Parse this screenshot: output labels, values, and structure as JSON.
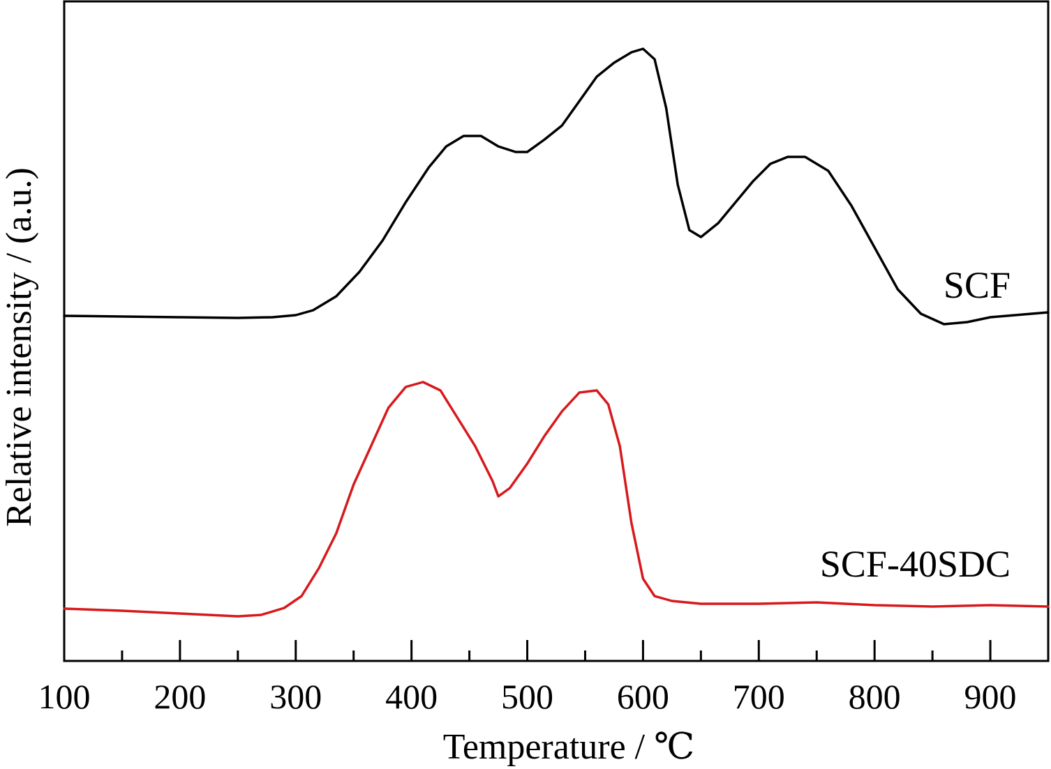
{
  "chart_data": {
    "type": "line",
    "xlabel": "Temperature / ℃",
    "ylabel": "Relative intensity / (a.u.)",
    "xlim": [
      100,
      950
    ],
    "x_ticks": [
      "100",
      "200",
      "300",
      "400",
      "500",
      "600",
      "700",
      "800",
      "900"
    ],
    "y_ticks": "none",
    "grid": false,
    "series": [
      {
        "name": "SCF",
        "color": "#000000",
        "x": [
          100,
          150,
          200,
          250,
          280,
          300,
          315,
          335,
          355,
          375,
          395,
          415,
          430,
          445,
          460,
          475,
          490,
          500,
          515,
          530,
          545,
          560,
          575,
          590,
          600,
          610,
          620,
          630,
          640,
          650,
          665,
          680,
          695,
          710,
          725,
          740,
          760,
          780,
          800,
          820,
          840,
          860,
          880,
          900,
          950
        ],
        "y": [
          453,
          454,
          455,
          456,
          455,
          452,
          445,
          425,
          390,
          345,
          290,
          240,
          210,
          195,
          195,
          210,
          218,
          218,
          200,
          180,
          145,
          110,
          90,
          75,
          70,
          85,
          155,
          265,
          330,
          340,
          320,
          290,
          260,
          235,
          225,
          225,
          245,
          295,
          355,
          415,
          450,
          465,
          462,
          455,
          448
        ],
        "label_text": "SCF"
      },
      {
        "name": "SCF-40SDC",
        "color": "#d7191c",
        "x": [
          100,
          150,
          200,
          250,
          270,
          290,
          305,
          320,
          335,
          350,
          365,
          380,
          395,
          410,
          425,
          440,
          455,
          470,
          475,
          485,
          500,
          515,
          530,
          545,
          560,
          570,
          580,
          590,
          600,
          610,
          625,
          650,
          700,
          750,
          800,
          850,
          900,
          950
        ],
        "y": [
          873,
          876,
          880,
          884,
          882,
          872,
          855,
          815,
          765,
          695,
          640,
          585,
          555,
          548,
          560,
          600,
          640,
          690,
          712,
          700,
          665,
          625,
          590,
          563,
          560,
          580,
          640,
          750,
          830,
          855,
          862,
          866,
          866,
          864,
          868,
          870,
          868,
          870
        ],
        "label_text": "SCF-40SDC"
      }
    ]
  }
}
